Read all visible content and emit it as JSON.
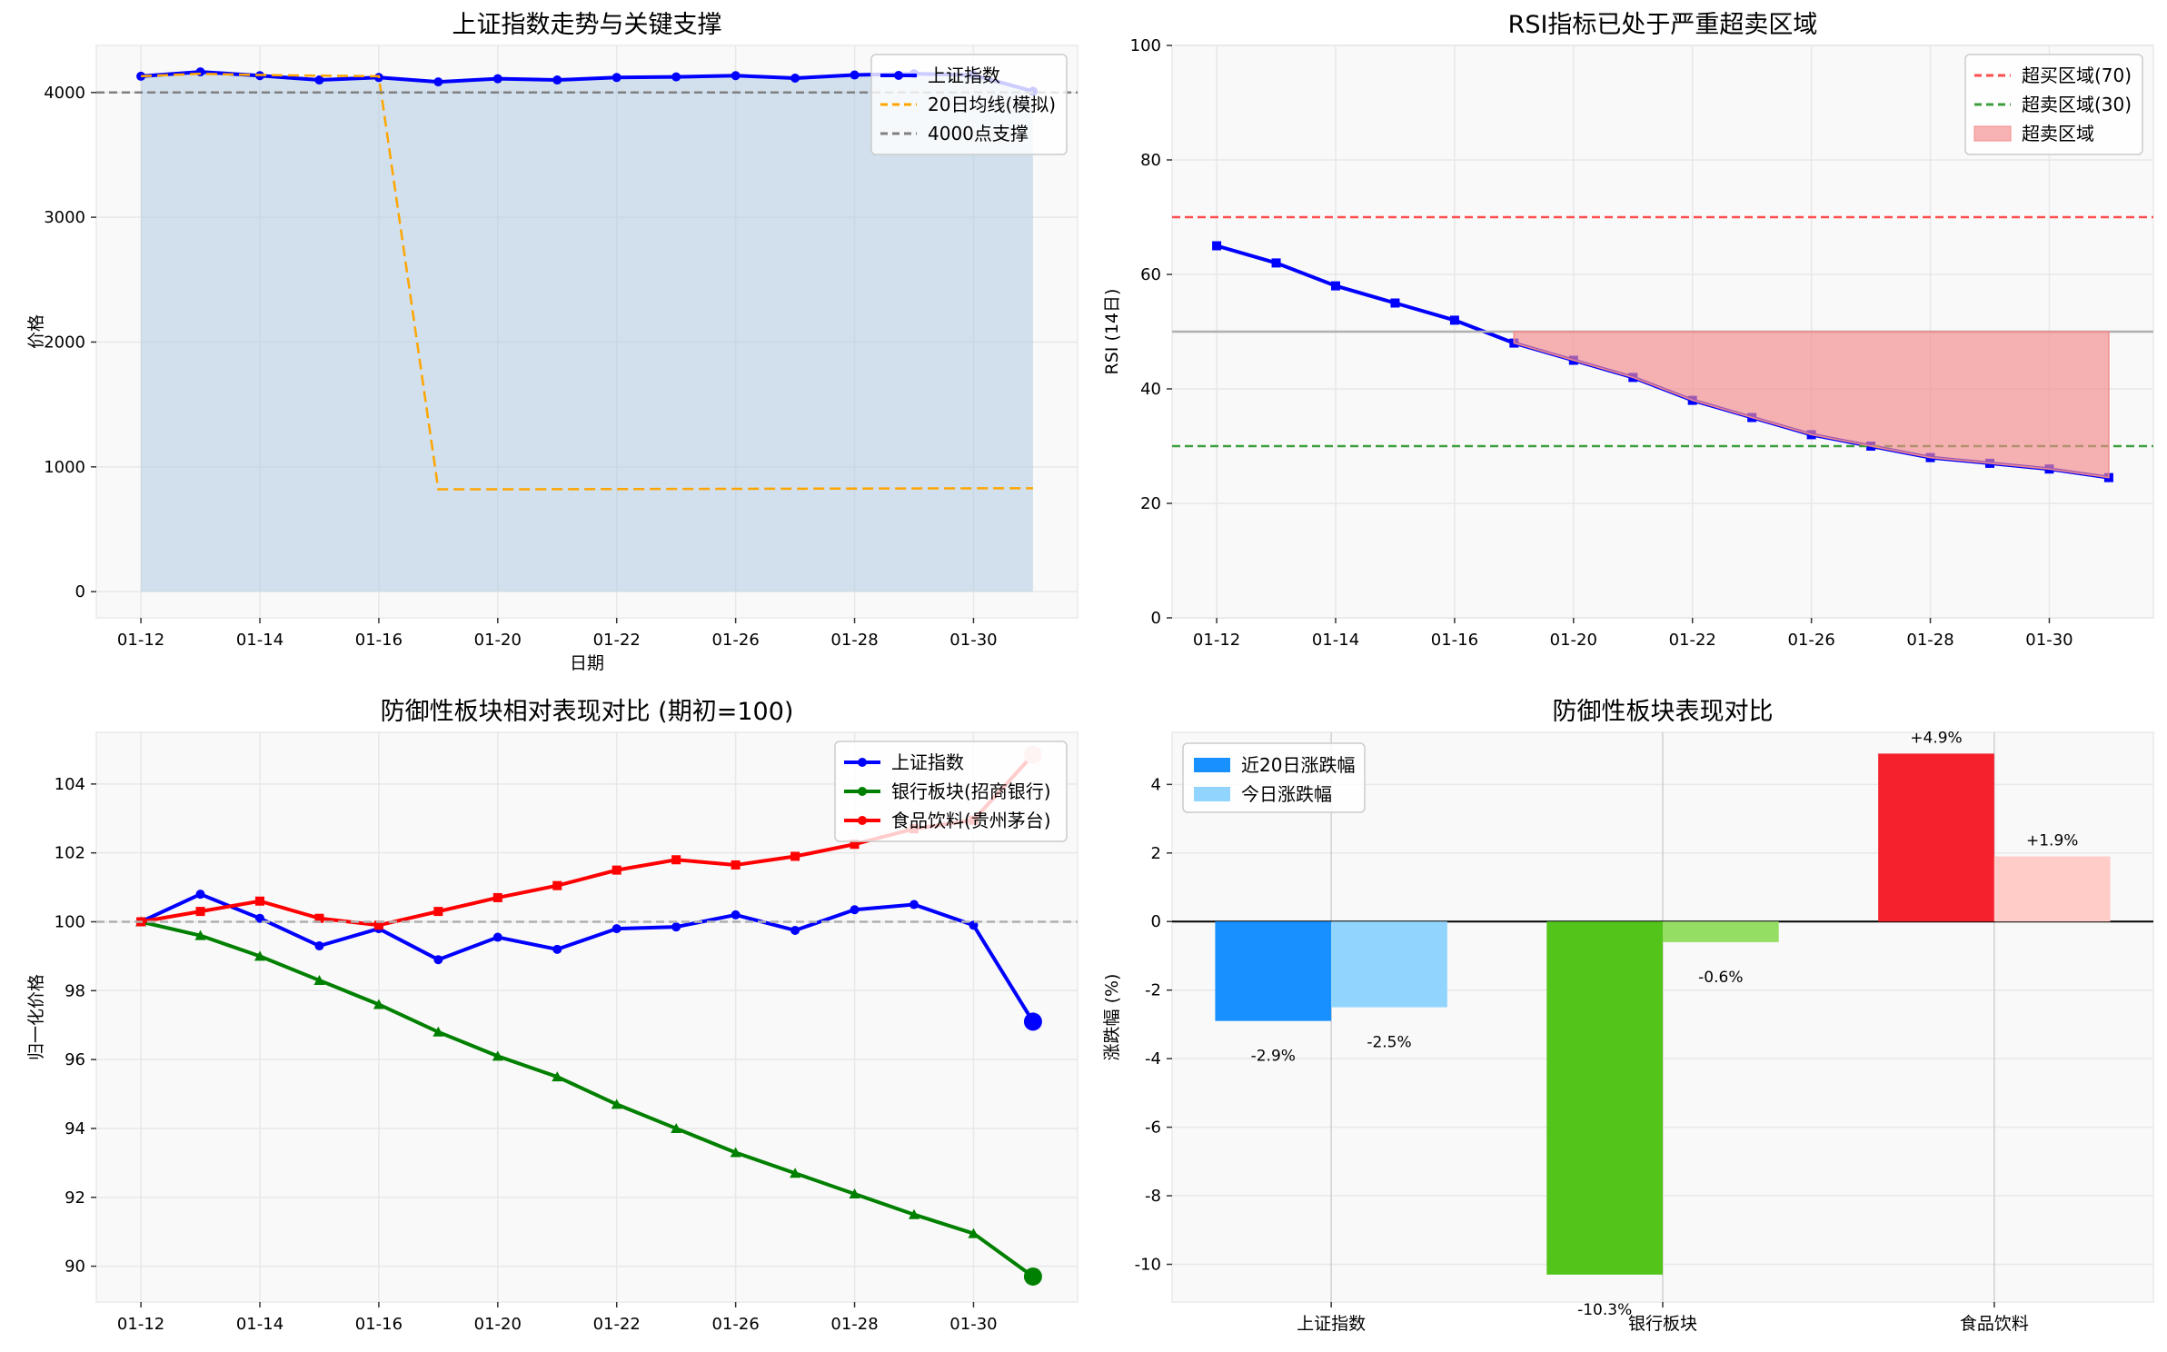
{
  "chart_data": [
    {
      "type": "line",
      "title": "上证指数走势与关键支撑",
      "xlabel": "日期",
      "ylabel": "价格",
      "x_tick_labels": [
        "01-12",
        "01-14",
        "01-16",
        "01-20",
        "01-22",
        "01-26",
        "01-28",
        "01-30"
      ],
      "xlim": [
        -0.75,
        15.75
      ],
      "ylim": [
        -210,
        4377
      ],
      "y_ticks": [
        0,
        1000,
        2000,
        3000,
        4000
      ],
      "grid": true,
      "legend_position": "upper-right",
      "series": [
        {
          "name": "上证指数",
          "color": "#0000ff",
          "style": "solid",
          "marker": "circle",
          "fill_to_zero": true,
          "fill_color": "#a9c8e0",
          "values": [
            4130,
            4165,
            4135,
            4100,
            4120,
            4085,
            4110,
            4100,
            4120,
            4125,
            4135,
            4115,
            4140,
            4150,
            4140,
            4010
          ]
        },
        {
          "name": "20日均线(模拟)",
          "color": "#ffa500",
          "style": "dashed",
          "values": [
            4130,
            4150,
            4140,
            4135,
            4130,
            820,
            820,
            821,
            822,
            823,
            824,
            825,
            826,
            827,
            828,
            828
          ]
        },
        {
          "name": "4000点支撑",
          "color": "#808080",
          "style": "dashed",
          "hline": 4000
        }
      ]
    },
    {
      "type": "line",
      "title": "RSI指标已处于严重超卖区域",
      "xlabel": "",
      "ylabel": "RSI (14日)",
      "x_tick_labels": [
        "01-12",
        "01-14",
        "01-16",
        "01-20",
        "01-22",
        "01-26",
        "01-28",
        "01-30"
      ],
      "xlim": [
        -0.75,
        15.75
      ],
      "ylim": [
        0,
        100
      ],
      "y_ticks": [
        0,
        20,
        40,
        60,
        80,
        100
      ],
      "grid": true,
      "legend_position": "upper-right",
      "series": [
        {
          "name": "",
          "color": "#0000ff",
          "style": "solid",
          "marker": "square",
          "values": [
            65,
            62,
            58,
            55,
            52,
            48,
            45,
            42,
            38,
            35,
            32,
            30,
            28,
            27,
            26,
            24.5
          ]
        },
        {
          "name": "超买区域(70)",
          "color": "#ff4d4d",
          "style": "dashed",
          "hline": 70
        },
        {
          "name": "超卖区域(30)",
          "color": "#3c9e3c",
          "style": "dashed",
          "hline": 30
        },
        {
          "name": "",
          "color": "#b0b0b0",
          "style": "solid",
          "hline": 50
        },
        {
          "name": "超卖区域",
          "color": "#f9a8a8",
          "style": "fill",
          "fill_between": 50,
          "from_index": 5,
          "to_index": 15
        }
      ]
    },
    {
      "type": "line",
      "title": "防御性板块相对表现对比 (期初=100)",
      "xlabel": "",
      "ylabel": "归一化价格",
      "x_tick_labels": [
        "01-12",
        "01-14",
        "01-16",
        "01-20",
        "01-22",
        "01-26",
        "01-28",
        "01-30"
      ],
      "xlim": [
        -0.75,
        15.75
      ],
      "ylim": [
        88.96,
        105.5
      ],
      "y_ticks": [
        90,
        92,
        94,
        96,
        98,
        100,
        102,
        104
      ],
      "grid": true,
      "legend_position": "upper-right",
      "series": [
        {
          "name": "上证指数",
          "color": "#0000ff",
          "style": "solid",
          "marker": "circle",
          "values": [
            100,
            100.8,
            100.1,
            99.3,
            99.8,
            98.9,
            99.55,
            99.2,
            99.8,
            99.85,
            100.2,
            99.75,
            100.35,
            100.5,
            99.9,
            97.1
          ]
        },
        {
          "name": "银行板块(招商银行)",
          "color": "#008000",
          "style": "solid",
          "marker": "triangle",
          "values": [
            100,
            99.6,
            99.0,
            98.3,
            97.6,
            96.8,
            96.1,
            95.5,
            94.7,
            94.0,
            93.3,
            92.7,
            92.1,
            91.5,
            90.95,
            89.7
          ]
        },
        {
          "name": "食品饮料(贵州茅台)",
          "color": "#ff0000",
          "style": "solid",
          "marker": "square",
          "end_marker_color": "#ffc8c8",
          "values": [
            100,
            100.3,
            100.6,
            100.1,
            99.9,
            100.3,
            100.7,
            101.05,
            101.5,
            101.8,
            101.65,
            101.9,
            102.25,
            102.7,
            102.95,
            104.85
          ]
        },
        {
          "name": "",
          "color": "#b0b0b0",
          "style": "dashed",
          "hline": 100
        }
      ]
    },
    {
      "type": "bar",
      "title": "防御性板块表现对比",
      "xlabel": "",
      "ylabel": "涨跌幅 (%)",
      "categories": [
        "上证指数",
        "银行板块",
        "食品饮料"
      ],
      "xlim": [
        -0.48,
        2.48
      ],
      "ylim": [
        -11.1,
        5.52
      ],
      "y_ticks": [
        -10,
        -8,
        -6,
        -4,
        -2,
        0,
        2,
        4
      ],
      "grid": true,
      "legend_position": "upper-left",
      "series": [
        {
          "name": "近20日涨跌幅",
          "values": [
            -2.9,
            -10.3,
            4.9
          ],
          "colors": [
            "#1890ff",
            "#52c41a",
            "#f5222d"
          ],
          "labels": [
            "-2.9%",
            "-10.3%",
            "+4.9%"
          ]
        },
        {
          "name": "今日涨跌幅",
          "values": [
            -2.5,
            -0.6,
            1.9
          ],
          "colors": [
            "#91d5ff",
            "#95de64",
            "#ffccc7"
          ],
          "labels": [
            "-2.5%",
            "-0.6%",
            "+1.9%"
          ]
        }
      ]
    }
  ]
}
